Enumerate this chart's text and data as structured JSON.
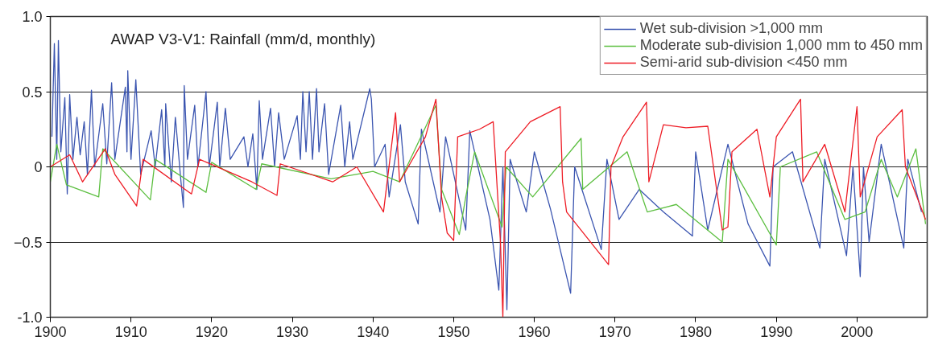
{
  "chart_data": {
    "type": "line",
    "title": "AWAP V3-V1: Rainfall (mm/d, monthly)",
    "xlim": [
      1900,
      2008.7
    ],
    "xticks": [
      1900,
      1910,
      1920,
      1930,
      1940,
      1950,
      1960,
      1970,
      1980,
      1990,
      2000
    ],
    "ylim": [
      -1,
      1
    ],
    "yticks": [
      {
        "value": 1,
        "label": "1.0"
      },
      0.5,
      0,
      -0.5,
      {
        "value": -1,
        "label": "-1.0"
      }
    ],
    "grid": "y",
    "legend": "top right",
    "line_style": "solid",
    "series": [
      {
        "name": "Wet sub-division >1,000 mm",
        "color": "#3b55b0",
        "x": [
          1900.2,
          1900.5,
          1900.8,
          1901.0,
          1901.3,
          1901.8,
          1902.1,
          1902.4,
          1902.8,
          1903.3,
          1903.7,
          1904.2,
          1904.6,
          1905.1,
          1905.5,
          1906.5,
          1907.0,
          1907.6,
          1908.0,
          1909.3,
          1909.5,
          1909.6,
          1910.0,
          1910.6,
          1911.2,
          1912.5,
          1913.0,
          1913.8,
          1914.2,
          1914.3,
          1915.0,
          1915.5,
          1916.2,
          1916.5,
          1916.6,
          1917.0,
          1917.9,
          1918.3,
          1919.3,
          1919.7,
          1920.7,
          1921.0,
          1921.7,
          1922.3,
          1924.0,
          1924.5,
          1925.1,
          1925.6,
          1925.9,
          1926.3,
          1927.3,
          1927.8,
          1928.3,
          1929.0,
          1930.6,
          1931.0,
          1931.3,
          1931.7,
          1932.1,
          1932.5,
          1933.0,
          1933.3,
          1934.0,
          1934.5,
          1936.0,
          1936.5,
          1937.1,
          1937.5,
          1939.6,
          1939.8,
          1940.2,
          1941.5,
          1942.0,
          1943.4,
          1944.0,
          1945.6,
          1946.0,
          1948.3,
          1949.0,
          1951.5,
          1952.0,
          1954.5,
          1955.6,
          1956.1,
          1956.6,
          1957.0,
          1959.0,
          1960.0,
          1962.0,
          1964.5,
          1965.0,
          1968.3,
          1969.0,
          1970.5,
          1973.0,
          1976.0,
          1979.6,
          1980.0,
          1981.5,
          1984.0,
          1986.5,
          1989.2,
          1989.6,
          1992.0,
          1995.4,
          1996.0,
          1998.7,
          1999.5,
          2000.4,
          2000.8,
          2001.5,
          2003.0,
          2005.8,
          2006.3,
          2008.0
        ],
        "values": [
          0.2,
          0.82,
          0.05,
          0.84,
          0.1,
          0.46,
          -0.18,
          0.48,
          0.05,
          0.33,
          0.08,
          0.3,
          -0.05,
          0.51,
          0.0,
          0.42,
          0.02,
          0.56,
          0.05,
          0.53,
          0.1,
          0.64,
          0.05,
          0.58,
          -0.05,
          0.24,
          0.0,
          0.38,
          0.0,
          0.42,
          -0.1,
          0.33,
          -0.1,
          -0.27,
          0.54,
          0.05,
          0.41,
          0.0,
          0.5,
          0.0,
          0.43,
          0.0,
          0.39,
          0.05,
          0.2,
          0.0,
          0.22,
          -0.15,
          0.44,
          0.05,
          0.39,
          0.0,
          0.36,
          0.05,
          0.34,
          0.05,
          0.5,
          0.1,
          0.5,
          0.05,
          0.52,
          0.1,
          0.42,
          -0.05,
          0.41,
          0.0,
          0.3,
          0.05,
          0.52,
          0.45,
          0.0,
          0.15,
          -0.2,
          0.28,
          -0.1,
          -0.38,
          0.25,
          -0.3,
          0.2,
          -0.42,
          0.24,
          -0.35,
          -0.82,
          0.0,
          -0.95,
          0.05,
          -0.3,
          0.1,
          -0.28,
          -0.84,
          0.0,
          -0.55,
          0.05,
          -0.35,
          -0.15,
          -0.3,
          -0.46,
          0.1,
          -0.42,
          0.15,
          -0.38,
          -0.66,
          0.0,
          0.1,
          -0.54,
          0.05,
          -0.59,
          0.0,
          -0.73,
          0.0,
          -0.5,
          0.15,
          -0.54,
          0.05,
          -0.3
        ]
      },
      {
        "name": "Moderate sub-division 1,000 mm to 450 mm",
        "color": "#5cbf40",
        "x": [
          1900.0,
          1900.8,
          1902.0,
          1906.0,
          1906.5,
          1912.4,
          1913.0,
          1919.3,
          1920.0,
          1925.5,
          1926.2,
          1934.8,
          1940.0,
          1943.3,
          1947.8,
          1948.5,
          1950.7,
          1951.5,
          1952.6,
          1956.0,
          1956.5,
          1959.8,
          1965.8,
          1966.0,
          1971.5,
          1974.0,
          1977.6,
          1983.3,
          1984.0,
          1990.0,
          1990.5,
          1995.0,
          1998.5,
          2001.0,
          2003.0,
          2005.0,
          2007.3,
          2008.5
        ],
        "values": [
          -0.1,
          0.15,
          -0.12,
          -0.2,
          0.12,
          -0.22,
          0.05,
          -0.17,
          0.03,
          -0.15,
          0.02,
          -0.08,
          -0.03,
          -0.1,
          0.41,
          -0.15,
          -0.45,
          -0.2,
          0.1,
          -0.4,
          0.0,
          -0.2,
          0.19,
          -0.15,
          0.1,
          -0.3,
          -0.25,
          -0.5,
          0.05,
          -0.52,
          0.0,
          0.1,
          -0.35,
          -0.3,
          0.05,
          -0.2,
          0.12,
          -0.38
        ]
      },
      {
        "name": "Semi-arid sub-division <450 mm",
        "color": "#ee1c25",
        "x": [
          1900.0,
          1902.4,
          1904.0,
          1906.8,
          1908.0,
          1910.7,
          1911.5,
          1917.5,
          1918.5,
          1925.0,
          1928.1,
          1928.5,
          1935.0,
          1938.0,
          1941.3,
          1942.8,
          1943.3,
          1946.5,
          1947.8,
          1948.5,
          1949.2,
          1950.0,
          1950.5,
          1953.2,
          1954.9,
          1955.8,
          1956.1,
          1956.4,
          1959.5,
          1963.2,
          1963.5,
          1964.0,
          1969.2,
          1969.5,
          1971.0,
          1973.9,
          1974.2,
          1976.0,
          1978.8,
          1981.5,
          1983.3,
          1984.0,
          1984.5,
          1987.6,
          1989.2,
          1990.0,
          1993.0,
          1993.3,
          1996.0,
          1998.5,
          2000.0,
          2000.4,
          2002.5,
          2005.6,
          2006.0,
          2008.5
        ],
        "values": [
          0.0,
          0.08,
          -0.1,
          0.12,
          -0.05,
          -0.26,
          0.05,
          -0.18,
          0.05,
          -0.1,
          -0.19,
          0.02,
          -0.1,
          0.0,
          -0.3,
          0.36,
          -0.1,
          0.2,
          0.45,
          -0.2,
          -0.44,
          -0.49,
          0.2,
          0.25,
          0.3,
          -0.5,
          -1.0,
          0.1,
          0.3,
          0.4,
          -0.1,
          -0.3,
          -0.65,
          0.0,
          0.2,
          0.43,
          -0.1,
          0.28,
          0.26,
          0.27,
          -0.42,
          -0.4,
          0.1,
          0.25,
          -0.2,
          0.2,
          0.45,
          -0.1,
          0.15,
          -0.3,
          0.4,
          -0.2,
          0.2,
          0.38,
          0.0,
          -0.35
        ]
      }
    ]
  }
}
